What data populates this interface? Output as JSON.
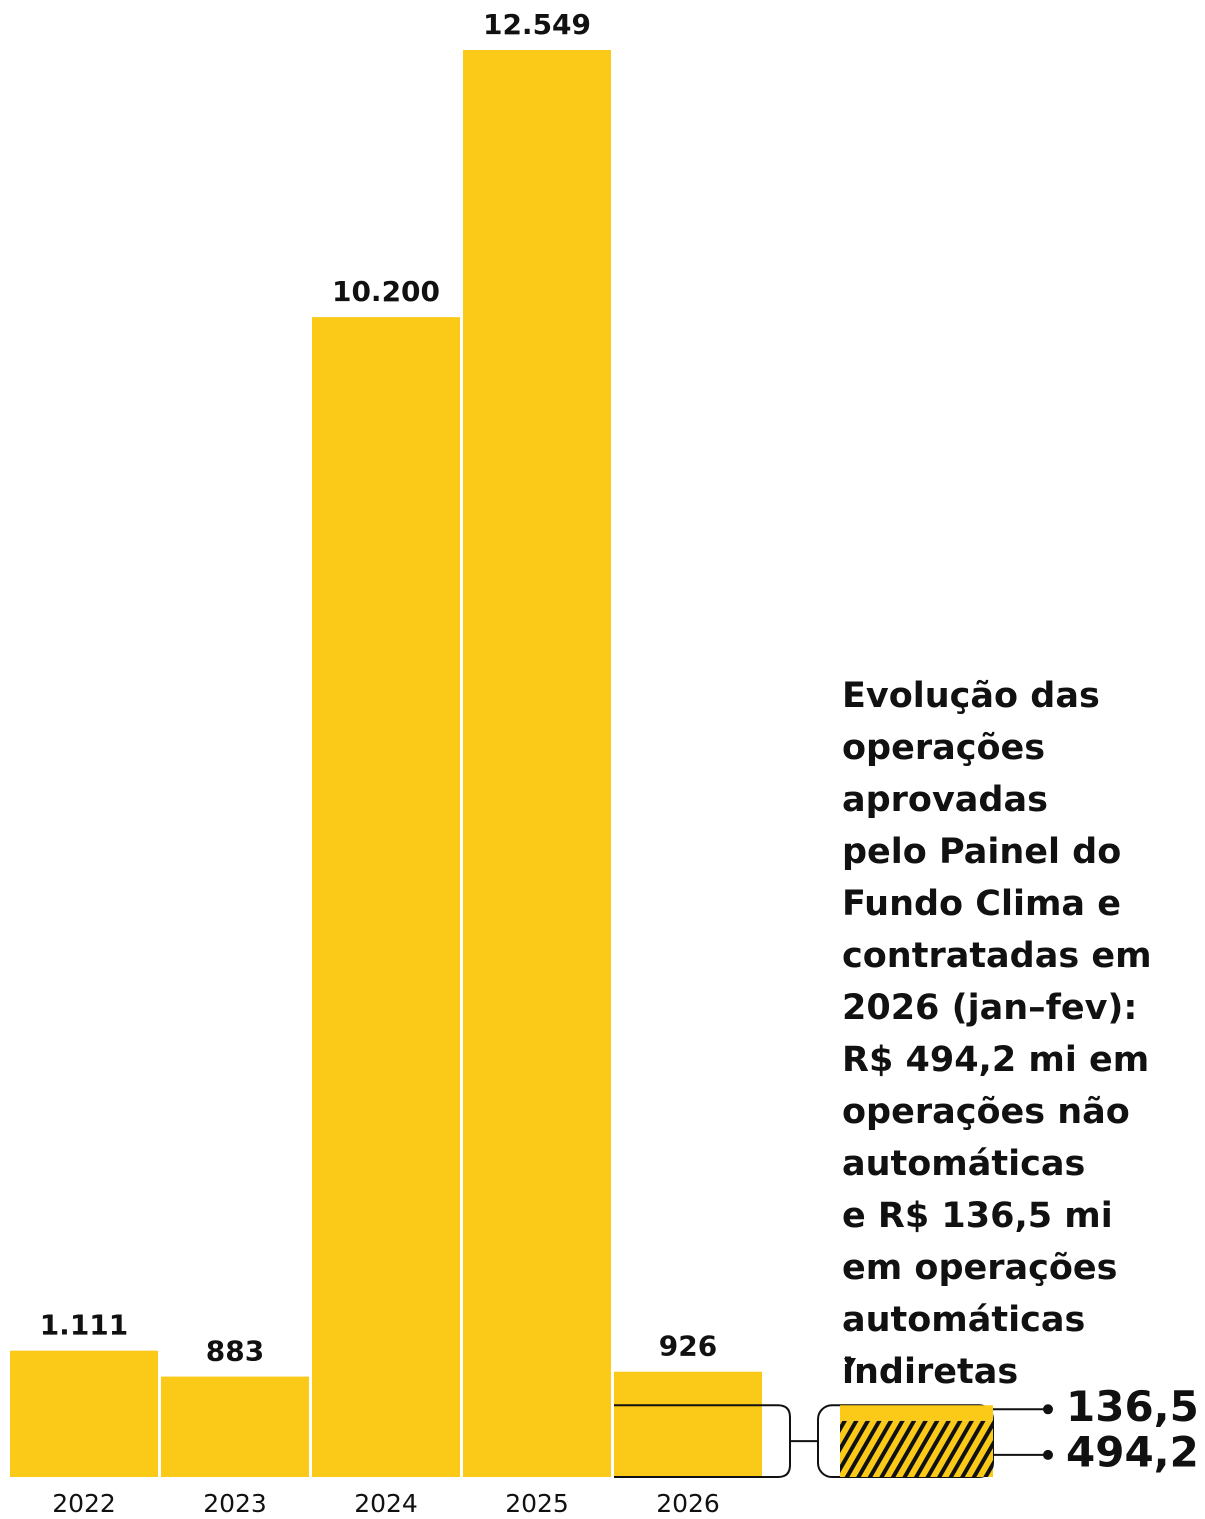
{
  "chart_data": {
    "type": "bar",
    "categories": [
      "2022",
      "2023",
      "2024",
      "2025",
      "2026"
    ],
    "values": [
      1111,
      883,
      10200,
      12549,
      926
    ],
    "value_labels": [
      "1.111",
      "883",
      "10.200",
      "12.549",
      "926"
    ],
    "color": "#fbc918",
    "ylim": [
      0,
      12549
    ],
    "annotation": [
      "Evolução das",
      "operações",
      "aprovadas",
      "pelo Painel do",
      "Fundo Clima e",
      "contratadas em",
      "2026 (jan–fev):",
      "R$ 494,2 mi em",
      "operações não",
      "automáticas",
      "e R$ 136,5 mi",
      "em operações",
      "automáticas",
      "indiretas"
    ],
    "breakdown": {
      "values": [
        494.2,
        136.5
      ],
      "value_labels": [
        "494,2",
        "136,5"
      ]
    }
  }
}
